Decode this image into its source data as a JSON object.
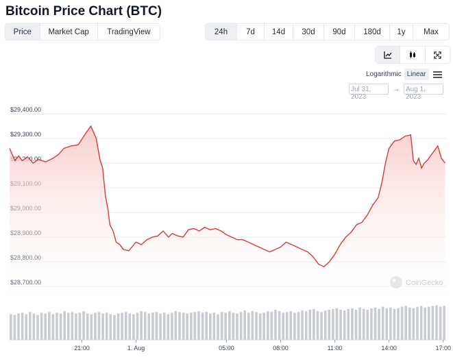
{
  "title": "Bitcoin Price Chart (BTC)",
  "type_tabs": [
    {
      "label": "Price",
      "active": true
    },
    {
      "label": "Market Cap",
      "active": false
    },
    {
      "label": "TradingView",
      "active": false
    }
  ],
  "range_tabs": [
    {
      "label": "24h",
      "active": true
    },
    {
      "label": "7d",
      "active": false
    },
    {
      "label": "14d",
      "active": false
    },
    {
      "label": "30d",
      "active": false
    },
    {
      "label": "90d",
      "active": false
    },
    {
      "label": "180d",
      "active": false
    },
    {
      "label": "1y",
      "active": false
    },
    {
      "label": "Max",
      "active": false
    }
  ],
  "tools": [
    {
      "icon": "line-chart-icon",
      "active": true
    },
    {
      "icon": "candlestick-icon",
      "active": false
    },
    {
      "icon": "fullscreen-icon",
      "active": false
    }
  ],
  "scale": {
    "logarithmic": "Logarithmic",
    "linear": "Linear",
    "active": "linear"
  },
  "date_range": {
    "from": "Jul 31, 2023",
    "to": "Aug 1, 2023",
    "arrow": "→"
  },
  "watermark": "CoinGecko",
  "colors": {
    "line": "#d63a3a",
    "fill_top": "#f6c9c4",
    "volume": "#c8ccd2",
    "grid": "#eeeeee"
  },
  "chart_data": {
    "type": "area",
    "title": "",
    "ylabel": "",
    "xlabel": "",
    "ylim": [
      28650,
      29420
    ],
    "yticks": [
      {
        "value": 29400,
        "label": "$29,400.00"
      },
      {
        "value": 29300,
        "label": "$29,300.00"
      },
      {
        "value": 29200,
        "label": "$29,200.00"
      },
      {
        "value": 29100,
        "label": "$29,100.00"
      },
      {
        "value": 29000,
        "label": "$29,000.00"
      },
      {
        "value": 28900,
        "label": "$28,900.00"
      },
      {
        "value": 28800,
        "label": "$28,800.00"
      },
      {
        "value": 28700,
        "label": "$28,700.00"
      }
    ],
    "xlim": [
      17,
      41.2
    ],
    "xticks": [
      {
        "value": 21,
        "label": "21:00"
      },
      {
        "value": 24,
        "label": "1. Aug"
      },
      {
        "value": 29,
        "label": "05:00"
      },
      {
        "value": 32,
        "label": "08:00"
      },
      {
        "value": 35,
        "label": "11:00"
      },
      {
        "value": 38,
        "label": "14:00"
      },
      {
        "value": 41,
        "label": "17:00"
      }
    ],
    "series": [
      {
        "x": [
          17.0,
          17.3,
          17.5,
          17.7,
          18.0,
          18.3,
          18.6,
          19.0,
          19.4,
          19.7,
          20.0,
          20.4,
          20.8,
          21.2,
          21.5,
          21.8,
          22.0,
          22.15,
          22.3,
          22.45,
          22.55,
          22.7,
          22.75,
          22.9,
          23.1,
          23.3,
          23.6,
          24.0,
          24.3,
          24.6,
          24.9,
          25.2,
          25.5,
          25.8,
          26.0,
          26.3,
          26.6,
          26.9,
          27.2,
          27.5,
          27.8,
          28.1,
          28.4,
          28.7,
          29.0,
          29.3,
          29.6,
          29.9,
          30.2,
          30.5,
          30.8,
          31.1,
          31.4,
          31.7,
          32.0,
          32.3,
          32.6,
          32.9,
          33.2,
          33.5,
          33.8,
          34.1,
          34.4,
          34.7,
          35.0,
          35.3,
          35.6,
          35.9,
          36.2,
          36.5,
          36.8,
          37.1,
          37.4,
          37.6,
          37.8,
          38.0,
          38.3,
          38.6,
          38.9,
          39.2,
          39.35,
          39.5,
          39.65,
          39.8,
          39.95,
          40.1,
          40.3,
          40.5,
          40.7,
          40.9,
          41.1
        ],
        "y": [
          29260,
          29210,
          29230,
          29210,
          29225,
          29200,
          29215,
          29205,
          29220,
          29235,
          29260,
          29270,
          29275,
          29320,
          29350,
          29300,
          29215,
          29180,
          29070,
          29010,
          28950,
          28930,
          28920,
          28880,
          28870,
          28850,
          28845,
          28880,
          28870,
          28890,
          28900,
          28905,
          28925,
          28900,
          28915,
          28905,
          28900,
          28930,
          28935,
          28925,
          28940,
          28930,
          28935,
          28925,
          28910,
          28900,
          28890,
          28890,
          28880,
          28870,
          28860,
          28850,
          28840,
          28850,
          28860,
          28880,
          28870,
          28860,
          28850,
          28840,
          28820,
          28790,
          28780,
          28800,
          28830,
          28870,
          28900,
          28920,
          28950,
          28960,
          28990,
          29030,
          29060,
          29120,
          29200,
          29260,
          29290,
          29295,
          29310,
          29315,
          29210,
          29195,
          29220,
          29180,
          29200,
          29210,
          29230,
          29250,
          29270,
          29220,
          29200
        ]
      }
    ],
    "volume": [
      34,
      33,
      35,
      36,
      34,
      37,
      35,
      33,
      36,
      35,
      37,
      34,
      36,
      35,
      38,
      36,
      37,
      35,
      36,
      38,
      35,
      34,
      36,
      37,
      35,
      36,
      34,
      33,
      35,
      36,
      37,
      35,
      34,
      36,
      38,
      37,
      35,
      36,
      37,
      35,
      36,
      34,
      36,
      38,
      37,
      36,
      35,
      36,
      37,
      38,
      36,
      37,
      35,
      36,
      34,
      37,
      36,
      38,
      36,
      35,
      37,
      39,
      36,
      38,
      37,
      35,
      36,
      38,
      37,
      40,
      38,
      36,
      37,
      38,
      36,
      37,
      39,
      38,
      40,
      41,
      38,
      37,
      39,
      40,
      41,
      42,
      40,
      39,
      41,
      42,
      40,
      43,
      41,
      40,
      42,
      43,
      41,
      44,
      42,
      43,
      41,
      42,
      44,
      45,
      43,
      42,
      44,
      45,
      43,
      44,
      45,
      46,
      44,
      45
    ]
  }
}
